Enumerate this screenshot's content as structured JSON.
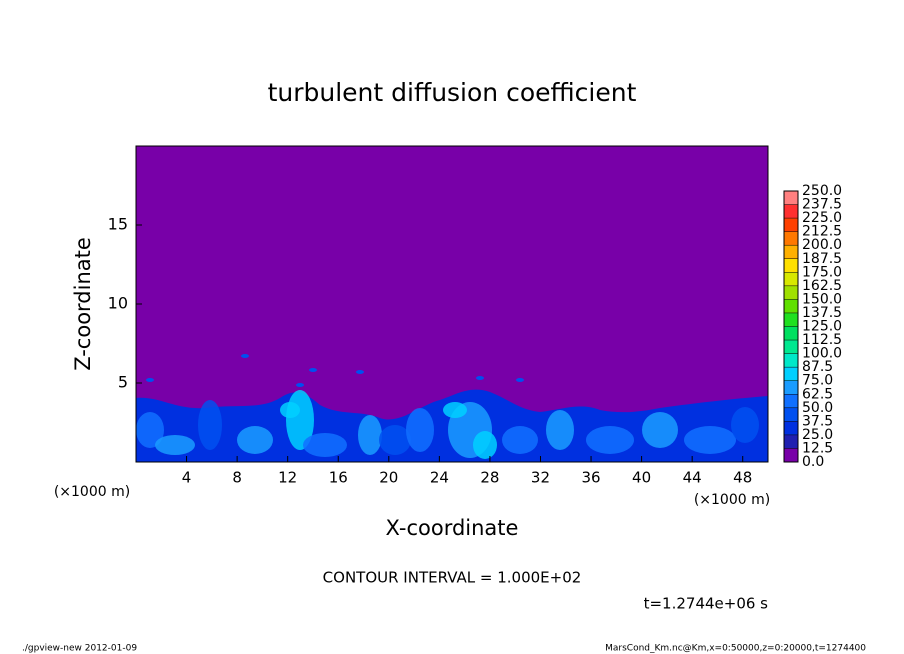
{
  "chart_data": {
    "type": "contour",
    "title": "turbulent diffusion coefficient",
    "xlabel": "X-coordinate",
    "ylabel": "Z-coordinate",
    "x_unit": "(×1000 m)",
    "xlim": [
      0,
      50
    ],
    "ylim": [
      0,
      20
    ],
    "xticks": [
      4,
      8,
      12,
      16,
      20,
      24,
      28,
      32,
      36,
      40,
      44,
      48
    ],
    "yticks": [
      5,
      10,
      15
    ],
    "colorbar": {
      "ticks": [
        {
          "value": 0,
          "label": "0.0"
        },
        {
          "value": 12.5,
          "label": "12.5"
        },
        {
          "value": 25,
          "label": "25.0"
        },
        {
          "value": 37.5,
          "label": "37.5"
        },
        {
          "value": 50,
          "label": "50.0"
        },
        {
          "value": 62.5,
          "label": "62.5"
        },
        {
          "value": 75,
          "label": "75.0"
        },
        {
          "value": 87.5,
          "label": "87.5"
        },
        {
          "value": 100,
          "label": "100.0"
        },
        {
          "value": 112.5,
          "label": "112.5"
        },
        {
          "value": 125,
          "label": "125.0"
        },
        {
          "value": 137.5,
          "label": "137.5"
        },
        {
          "value": 150,
          "label": "150.0"
        },
        {
          "value": 162.5,
          "label": "162.5"
        },
        {
          "value": 175,
          "label": "175.0"
        },
        {
          "value": 187.5,
          "label": "187.5"
        },
        {
          "value": 200,
          "label": "200.0"
        },
        {
          "value": 212.5,
          "label": "212.5"
        },
        {
          "value": 225,
          "label": "225.0"
        },
        {
          "value": 237.5,
          "label": "237.5"
        },
        {
          "value": 250,
          "label": "250.0"
        }
      ],
      "colors": [
        "#7800a8",
        "#2020b0",
        "#0030e0",
        "#0050f0",
        "#1070ff",
        "#1a9cff",
        "#00d0ff",
        "#00e8c8",
        "#00e890",
        "#00e060",
        "#20e020",
        "#60e000",
        "#a0e000",
        "#d8e800",
        "#ffe000",
        "#ffb000",
        "#ff7800",
        "#ff4000",
        "#ff3030",
        "#ff8080"
      ]
    },
    "contour_interval": "CONTOUR INTERVAL = 1.000E+02",
    "time_label": "t=1.2744e+06 s",
    "footer_left": "./gpview-new   2012-01-09",
    "footer_right": "MarsCond_Km.nc@Km,x=0:50000,z=0:20000,t=1274400"
  }
}
